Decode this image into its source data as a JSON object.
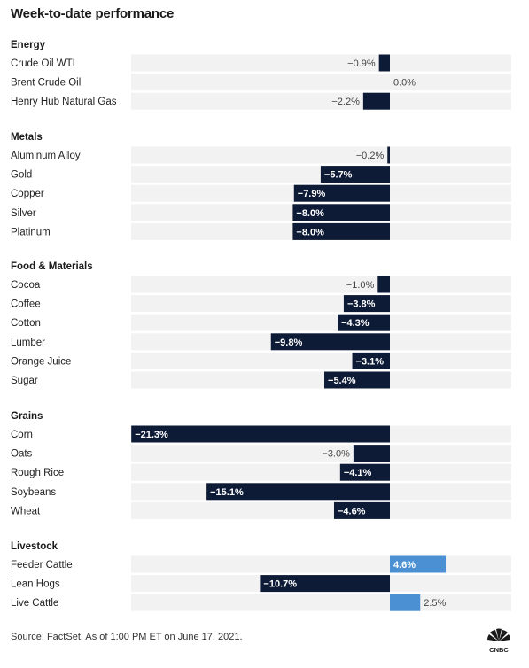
{
  "title": "Week-to-date performance",
  "source": "Source: FactSet. As of 1:00 PM ET on June 17, 2021.",
  "logo_text": "CNBC",
  "colors": {
    "negative": "#0d1b36",
    "positive": "#4a90d2",
    "row_bg": "#f2f2f2"
  },
  "chart_data": {
    "type": "bar",
    "orientation": "horizontal",
    "unit": "%",
    "groups": [
      {
        "name": "Energy",
        "items": [
          {
            "label": "Crude Oil WTI",
            "value": -0.9,
            "text": "−0.9%"
          },
          {
            "label": "Brent Crude Oil",
            "value": 0.0,
            "text": "0.0%"
          },
          {
            "label": "Henry Hub Natural Gas",
            "value": -2.2,
            "text": "−2.2%"
          }
        ]
      },
      {
        "name": "Metals",
        "items": [
          {
            "label": "Aluminum Alloy",
            "value": -0.2,
            "text": "−0.2%"
          },
          {
            "label": "Gold",
            "value": -5.7,
            "text": "−5.7%"
          },
          {
            "label": "Copper",
            "value": -7.9,
            "text": "−7.9%"
          },
          {
            "label": "Silver",
            "value": -8.0,
            "text": "−8.0%"
          },
          {
            "label": "Platinum",
            "value": -8.0,
            "text": "−8.0%"
          }
        ]
      },
      {
        "name": "Food & Materials",
        "items": [
          {
            "label": "Cocoa",
            "value": -1.0,
            "text": "−1.0%"
          },
          {
            "label": "Coffee",
            "value": -3.8,
            "text": "−3.8%"
          },
          {
            "label": "Cotton",
            "value": -4.3,
            "text": "−4.3%"
          },
          {
            "label": "Lumber",
            "value": -9.8,
            "text": "−9.8%"
          },
          {
            "label": "Orange Juice",
            "value": -3.1,
            "text": "−3.1%"
          },
          {
            "label": "Sugar",
            "value": -5.4,
            "text": "−5.4%"
          }
        ]
      },
      {
        "name": "Grains",
        "items": [
          {
            "label": "Corn",
            "value": -21.3,
            "text": "−21.3%"
          },
          {
            "label": "Oats",
            "value": -3.0,
            "text": "−3.0%"
          },
          {
            "label": "Rough Rice",
            "value": -4.1,
            "text": "−4.1%"
          },
          {
            "label": "Soybeans",
            "value": -15.1,
            "text": "−15.1%"
          },
          {
            "label": "Wheat",
            "value": -4.6,
            "text": "−4.6%"
          }
        ]
      },
      {
        "name": "Livestock",
        "items": [
          {
            "label": "Feeder Cattle",
            "value": 4.6,
            "text": "4.6%"
          },
          {
            "label": "Lean Hogs",
            "value": -10.7,
            "text": "−10.7%"
          },
          {
            "label": "Live Cattle",
            "value": 2.5,
            "text": "2.5%"
          }
        ]
      }
    ]
  }
}
